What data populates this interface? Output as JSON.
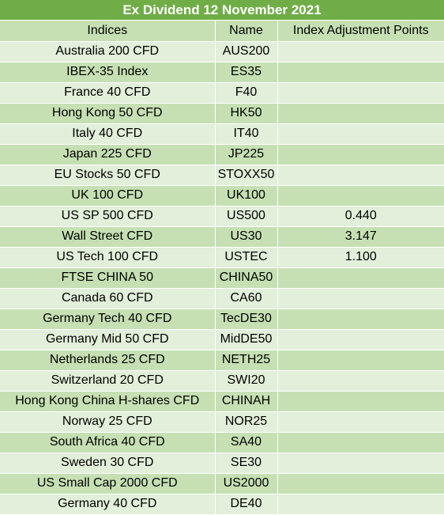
{
  "title": "Ex Dividend 12 November 2021",
  "headers": {
    "indices": "Indices",
    "name": "Name",
    "points": "Index Adjustment Points"
  },
  "rows": [
    {
      "index": "Australia 200 CFD",
      "name": "AUS200",
      "points": ""
    },
    {
      "index": "IBEX-35 Index",
      "name": "ES35",
      "points": ""
    },
    {
      "index": "France 40 CFD",
      "name": "F40",
      "points": ""
    },
    {
      "index": "Hong Kong 50 CFD",
      "name": "HK50",
      "points": ""
    },
    {
      "index": "Italy 40 CFD",
      "name": "IT40",
      "points": ""
    },
    {
      "index": "Japan 225 CFD",
      "name": "JP225",
      "points": ""
    },
    {
      "index": "EU Stocks 50 CFD",
      "name": "STOXX50",
      "points": ""
    },
    {
      "index": "UK 100 CFD",
      "name": "UK100",
      "points": ""
    },
    {
      "index": "US SP 500 CFD",
      "name": "US500",
      "points": "0.440"
    },
    {
      "index": "Wall Street CFD",
      "name": "US30",
      "points": "3.147"
    },
    {
      "index": "US Tech 100 CFD",
      "name": "USTEC",
      "points": "1.100"
    },
    {
      "index": "FTSE CHINA 50",
      "name": "CHINA50",
      "points": ""
    },
    {
      "index": "Canada 60 CFD",
      "name": "CA60",
      "points": ""
    },
    {
      "index": "Germany Tech 40 CFD",
      "name": "TecDE30",
      "points": ""
    },
    {
      "index": "Germany Mid 50 CFD",
      "name": "MidDE50",
      "points": ""
    },
    {
      "index": "Netherlands 25 CFD",
      "name": "NETH25",
      "points": ""
    },
    {
      "index": "Switzerland 20 CFD",
      "name": "SWI20",
      "points": ""
    },
    {
      "index": "Hong Kong China H-shares CFD",
      "name": "CHINAH",
      "points": ""
    },
    {
      "index": "Norway 25 CFD",
      "name": "NOR25",
      "points": ""
    },
    {
      "index": "South Africa 40 CFD",
      "name": "SA40",
      "points": ""
    },
    {
      "index": "Sweden 30 CFD",
      "name": "SE30",
      "points": ""
    },
    {
      "index": "US Small Cap 2000 CFD",
      "name": "US2000",
      "points": ""
    },
    {
      "index": "Germany 40 CFD",
      "name": "DE40",
      "points": ""
    }
  ]
}
